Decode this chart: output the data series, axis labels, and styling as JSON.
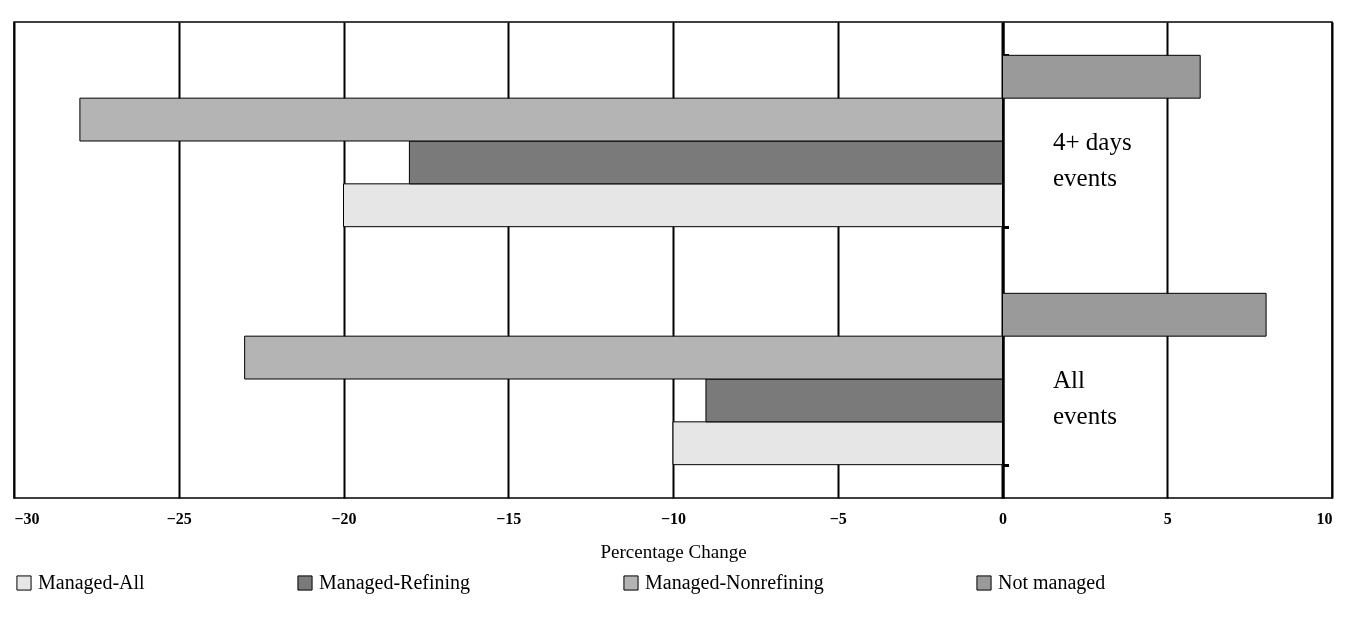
{
  "chart_data": {
    "type": "bar",
    "orientation": "horizontal",
    "xlabel": "Percentage Change",
    "categories": [
      "4+ days events",
      "All events"
    ],
    "series": [
      {
        "name": "Managed-All",
        "color": "#e6e6e6",
        "values": [
          -20,
          -10
        ]
      },
      {
        "name": "Managed-Refining",
        "color": "#7a7a7a",
        "values": [
          -18,
          -9
        ]
      },
      {
        "name": "Managed-Nonrefining",
        "color": "#b4b4b4",
        "values": [
          -28,
          -23
        ]
      },
      {
        "name": "Not managed",
        "color": "#9a9a9a",
        "values": [
          6,
          8
        ]
      }
    ],
    "xlim": [
      -30,
      10
    ],
    "xticks": [
      -30,
      -25,
      -20,
      -15,
      -10,
      -5,
      0,
      5,
      10
    ],
    "grid": "x",
    "legend": "bottom"
  }
}
